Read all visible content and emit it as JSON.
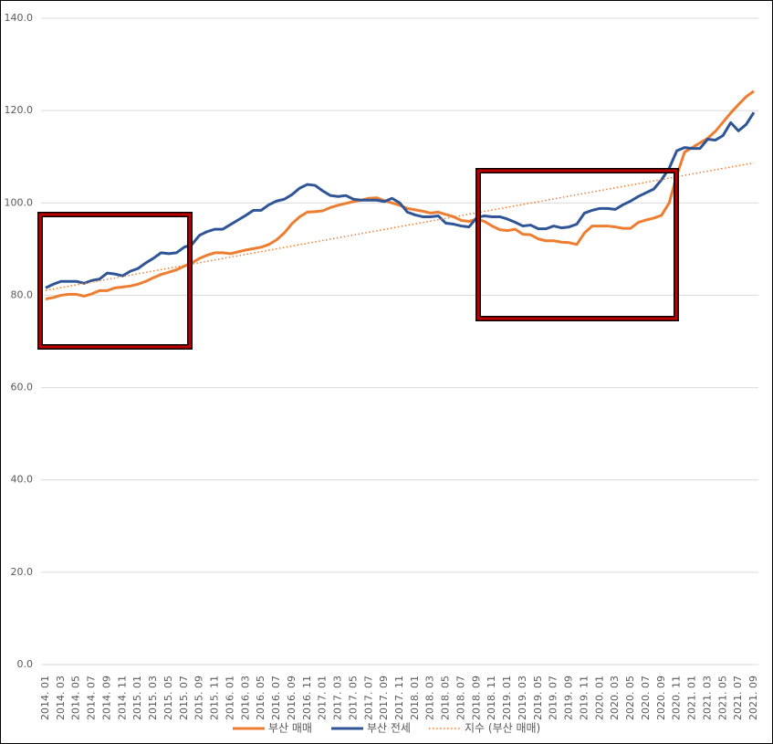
{
  "chart_data": {
    "type": "line",
    "categories": [
      "2014. 01",
      null,
      "2014. 03",
      null,
      "2014. 05",
      null,
      "2014. 07",
      null,
      "2014. 09",
      null,
      "2014. 11",
      null,
      "2015. 01",
      null,
      "2015. 03",
      null,
      "2015. 05",
      null,
      "2015. 07",
      null,
      "2015. 09",
      null,
      "2015. 11",
      null,
      "2016. 01",
      null,
      "2016. 03",
      null,
      "2016. 05",
      null,
      "2016. 07",
      null,
      "2016. 09",
      null,
      "2016. 11",
      null,
      "2017. 01",
      null,
      "2017. 03",
      null,
      "2017. 05",
      null,
      "2017. 07",
      null,
      "2017. 09",
      null,
      "2017. 11",
      null,
      "2018. 01",
      null,
      "2018. 03",
      null,
      "2018. 05",
      null,
      "2018. 07",
      null,
      "2018. 09",
      null,
      "2018. 11",
      null,
      "2019. 01",
      null,
      "2019. 03",
      null,
      "2019. 05",
      null,
      "2019. 07",
      null,
      "2019. 09",
      null,
      "2019. 11",
      null,
      "2020. 01",
      null,
      "2020. 03",
      null,
      "2020. 05",
      null,
      "2020. 07",
      null,
      "2020. 09",
      null,
      "2020. 11",
      null,
      "2021. 01",
      null,
      "2021. 03",
      null,
      "2021. 05",
      null,
      "2021. 07",
      null,
      "2021. 09"
    ],
    "series": [
      {
        "name": "부산 매매",
        "color": "#ed7d31",
        "values": [
          79.2,
          79.5,
          80.0,
          80.2,
          80.2,
          79.8,
          80.3,
          81.0,
          81.0,
          81.6,
          81.8,
          82.0,
          82.4,
          83.0,
          83.8,
          84.5,
          85.0,
          85.5,
          86.3,
          87.0,
          88.0,
          88.7,
          89.2,
          89.2,
          89.0,
          89.4,
          89.8,
          90.1,
          90.4,
          91.0,
          92.0,
          93.5,
          95.5,
          97.0,
          98.0,
          98.1,
          98.3,
          99.0,
          99.5,
          99.9,
          100.3,
          100.6,
          101.0,
          101.1,
          100.5,
          100.0,
          99.5,
          98.8,
          98.5,
          98.2,
          97.8,
          98.0,
          97.5,
          97.0,
          96.2,
          96.0,
          96.5,
          96.0,
          95.0,
          94.2,
          94.0,
          94.3,
          93.2,
          93.1,
          92.2,
          91.8,
          91.8,
          91.5,
          91.4,
          91.0,
          93.5,
          95.0,
          95.0,
          95.0,
          94.8,
          94.5,
          94.5,
          95.8,
          96.3,
          96.7,
          97.3,
          100.0,
          106.0,
          111.0,
          112.0,
          113.0,
          114.0,
          115.5,
          117.5,
          119.5,
          121.3,
          123.0,
          124.2
        ]
      },
      {
        "name": "부산 전세",
        "color": "#2f5597",
        "values": [
          81.6,
          82.4,
          83.0,
          83.0,
          83.0,
          82.6,
          83.2,
          83.5,
          84.8,
          84.6,
          84.2,
          85.2,
          85.8,
          87.0,
          88.0,
          89.2,
          89.0,
          89.2,
          90.4,
          91.0,
          93.0,
          93.8,
          94.3,
          94.3,
          95.3,
          96.3,
          97.3,
          98.4,
          98.4,
          99.6,
          100.4,
          100.8,
          101.8,
          103.2,
          104.0,
          103.8,
          102.6,
          101.6,
          101.4,
          101.6,
          100.8,
          100.6,
          100.6,
          100.6,
          100.3,
          101.0,
          100.0,
          98.0,
          97.4,
          97.0,
          97.0,
          97.2,
          95.6,
          95.4,
          95.0,
          94.8,
          96.8,
          97.2,
          97.0,
          97.0,
          96.5,
          95.8,
          95.0,
          95.2,
          94.4,
          94.4,
          95.0,
          94.6,
          94.8,
          95.4,
          97.8,
          98.4,
          98.8,
          98.8,
          98.6,
          99.6,
          100.4,
          101.4,
          102.2,
          103.0,
          105.0,
          107.5,
          111.3,
          112.0,
          111.8,
          111.8,
          113.8,
          113.6,
          114.6,
          117.4,
          115.6,
          117.0,
          119.6
        ]
      }
    ],
    "trendline": {
      "name": "지수 (부산 매매)",
      "color": "#ed7d31",
      "series": 0
    },
    "ylim": [
      0,
      140
    ],
    "yticks": [
      {
        "value": 0,
        "label": "0.0"
      },
      {
        "value": 20,
        "label": "20.0"
      },
      {
        "value": 40,
        "label": "40.0"
      },
      {
        "value": 60,
        "label": "60.0"
      },
      {
        "value": 80,
        "label": "80.0"
      },
      {
        "value": 100,
        "label": "100.0"
      },
      {
        "value": 120,
        "label": "120.0"
      },
      {
        "value": 140,
        "label": "140.0"
      }
    ],
    "grid": true,
    "legend": "bottom"
  }
}
